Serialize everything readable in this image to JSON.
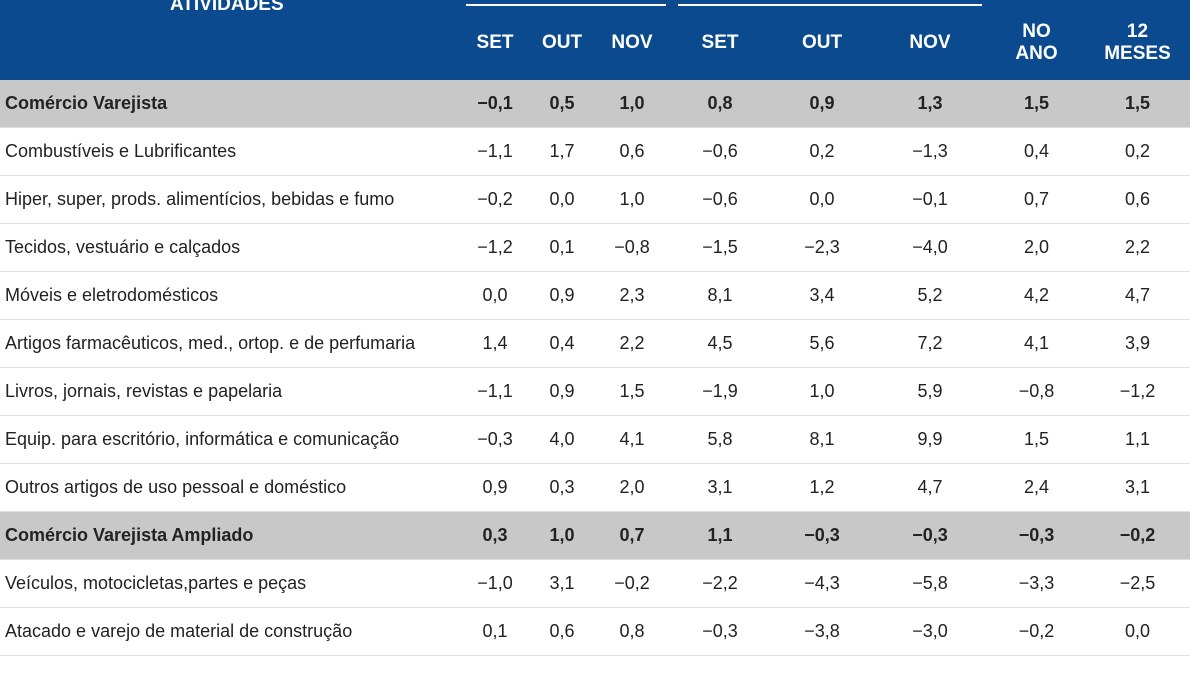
{
  "header": {
    "title": "ATIVIDADES",
    "columns": [
      "SET",
      "OUT",
      "NOV",
      "SET",
      "OUT",
      "NOV",
      "NO ANO",
      "12 MESES"
    ]
  },
  "sections": [
    {
      "name": "Comércio Varejista",
      "values": [
        "−0,1",
        "0,5",
        "1,0",
        "0,8",
        "0,9",
        "1,3",
        "1,5",
        "1,5"
      ],
      "items": [
        {
          "label": "Combustíveis e Lubrificantes",
          "values": [
            "−1,1",
            "1,7",
            "0,6",
            "−0,6",
            "0,2",
            "−1,3",
            "0,4",
            "0,2"
          ]
        },
        {
          "label": "Hiper, super, prods. alimentícios, bebidas e fumo",
          "values": [
            "−0,2",
            "0,0",
            "1,0",
            "−0,6",
            "0,0",
            "−0,1",
            "0,7",
            "0,6"
          ]
        },
        {
          "label": "Tecidos, vestuário e calçados",
          "values": [
            "−1,2",
            "0,1",
            "−0,8",
            "−1,5",
            "−2,3",
            "−4,0",
            "2,0",
            "2,2"
          ]
        },
        {
          "label": "Móveis e eletrodomésticos",
          "values": [
            "0,0",
            "0,9",
            "2,3",
            "8,1",
            "3,4",
            "5,2",
            "4,2",
            "4,7"
          ]
        },
        {
          "label": "Artigos farmacêuticos, med., ortop. e de perfumaria",
          "values": [
            "1,4",
            "0,4",
            "2,2",
            "4,5",
            "5,6",
            "7,2",
            "4,1",
            "3,9"
          ]
        },
        {
          "label": "Livros, jornais, revistas e papelaria",
          "values": [
            "−1,1",
            "0,9",
            "1,5",
            "−1,9",
            "1,0",
            "5,9",
            "−0,8",
            "−1,2"
          ]
        },
        {
          "label": "Equip. para escritório, informática e comunicação",
          "values": [
            "−0,3",
            "4,0",
            "4,1",
            "5,8",
            "8,1",
            "9,9",
            "1,5",
            "1,1"
          ]
        },
        {
          "label": "Outros artigos de uso pessoal e doméstico",
          "values": [
            "0,9",
            "0,3",
            "2,0",
            "3,1",
            "1,2",
            "4,7",
            "2,4",
            "3,1"
          ]
        }
      ]
    },
    {
      "name": "Comércio Varejista Ampliado",
      "values": [
        "0,3",
        "1,0",
        "0,7",
        "1,1",
        "−0,3",
        "−0,3",
        "−0,3",
        "−0,2"
      ],
      "items": [
        {
          "label": "Veículos, motocicletas,partes e peças",
          "values": [
            "−1,0",
            "3,1",
            "−0,2",
            "−2,2",
            "−4,3",
            "−5,8",
            "−3,3",
            "−2,5"
          ]
        },
        {
          "label": "Atacado e varejo de material de construção",
          "values": [
            "0,1",
            "0,6",
            "0,8",
            "−0,3",
            "−3,8",
            "−3,0",
            "−0,2",
            "0,0"
          ]
        }
      ]
    }
  ]
}
